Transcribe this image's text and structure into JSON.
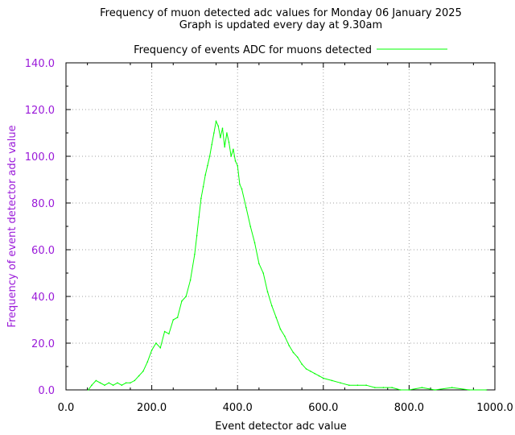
{
  "chart_data": {
    "type": "line",
    "title": "Frequency of muon detected adc values for Monday 06 January 2025",
    "subtitle": "Graph is updated every day at 9.30am",
    "xlabel": "Event detector adc value",
    "ylabel": "Frequency of event detector adc value",
    "xlim": [
      0,
      1000
    ],
    "ylim": [
      0,
      140
    ],
    "x_ticks": [
      "0.0",
      "200.0",
      "400.0",
      "600.0",
      "800.0",
      "1000.0"
    ],
    "y_ticks": [
      "0.0",
      "20.0",
      "40.0",
      "60.0",
      "80.0",
      "100.0",
      "120.0",
      "140.0"
    ],
    "grid": true,
    "legend_position": "top-center",
    "colors": {
      "series": "#00ff00",
      "y_axis_text": "#9a19d9"
    },
    "series": [
      {
        "name": "Frequency of events ADC for muons detected",
        "x": [
          52,
          60,
          70,
          80,
          90,
          100,
          110,
          120,
          130,
          140,
          150,
          160,
          170,
          180,
          190,
          200,
          210,
          220,
          230,
          240,
          250,
          260,
          270,
          280,
          290,
          300,
          305,
          310,
          315,
          320,
          325,
          330,
          335,
          340,
          345,
          350,
          355,
          360,
          365,
          370,
          375,
          380,
          385,
          390,
          395,
          400,
          405,
          410,
          420,
          430,
          440,
          450,
          460,
          470,
          480,
          490,
          500,
          510,
          520,
          530,
          540,
          550,
          560,
          570,
          580,
          590,
          600,
          620,
          640,
          660,
          680,
          700,
          720,
          740,
          760,
          780,
          800,
          830,
          860,
          900,
          940,
          980
        ],
        "y": [
          0,
          2,
          4,
          3,
          2,
          3,
          2,
          3,
          2,
          3,
          3,
          4,
          6,
          8,
          12,
          17,
          20,
          18,
          25,
          24,
          30,
          31,
          38,
          40,
          47,
          58,
          66,
          74,
          82,
          87,
          92,
          96,
          100,
          105,
          110,
          115,
          113,
          108,
          112,
          104,
          110,
          106,
          100,
          103,
          98,
          96,
          88,
          86,
          78,
          70,
          63,
          54,
          50,
          42,
          36,
          31,
          26,
          23,
          19,
          16,
          14,
          11,
          9,
          8,
          7,
          6,
          5,
          4,
          3,
          2,
          2,
          2,
          1,
          1,
          1,
          0,
          0,
          1,
          0,
          1,
          0,
          0
        ]
      }
    ]
  }
}
